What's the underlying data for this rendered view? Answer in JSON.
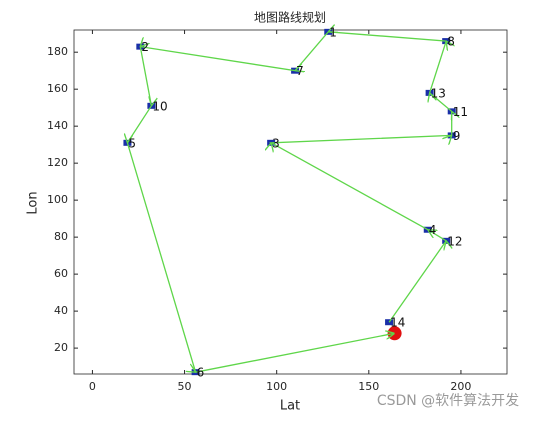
{
  "chart_data": {
    "type": "route",
    "title": "地图路线规划",
    "x_label": "Lat",
    "y_label": "Lon",
    "xlim": [
      -10,
      225
    ],
    "ylim": [
      6,
      192
    ],
    "xticks": [
      0,
      50,
      100,
      150,
      200
    ],
    "yticks": [
      20,
      40,
      60,
      80,
      100,
      120,
      140,
      160,
      180
    ],
    "grid": false,
    "line_color": "#5fd64a",
    "marker_color": "#1a2fa8",
    "start_color": "#e01010",
    "route": {
      "labels": [
        "14",
        "12",
        "4",
        "3",
        "9",
        "11",
        "13",
        "8",
        "1",
        "7",
        "2",
        "10",
        "5",
        "6"
      ],
      "x": [
        161,
        192,
        182,
        97,
        195,
        195,
        183,
        192,
        128,
        110,
        26,
        32,
        19,
        56
      ],
      "y": [
        34,
        78,
        84,
        131,
        135,
        148,
        158,
        186,
        191,
        170,
        183,
        151,
        131,
        7
      ]
    },
    "start": {
      "x": 164,
      "y": 28
    }
  },
  "watermark": "CSDN @软件算法开发"
}
